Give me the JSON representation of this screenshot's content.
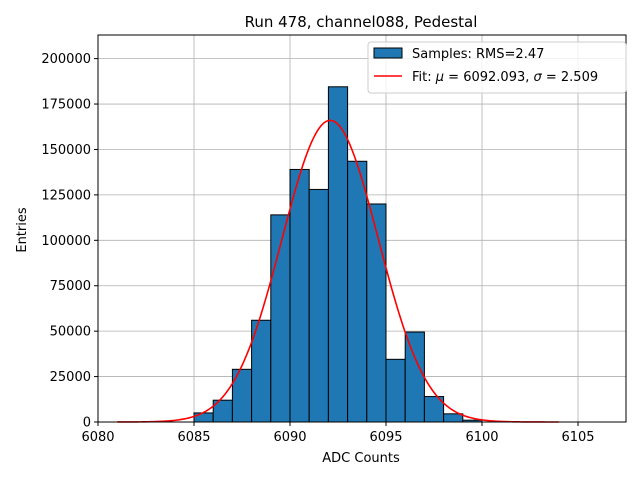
{
  "chart_data": {
    "type": "bar",
    "title": "Run 478, channel088, Pedestal",
    "xlabel": "ADC Counts",
    "ylabel": "Entries",
    "xlim": [
      6080,
      6107.5
    ],
    "ylim": [
      0,
      213000
    ],
    "xticks": [
      6080,
      6085,
      6090,
      6095,
      6100,
      6105
    ],
    "yticks": [
      0,
      25000,
      50000,
      75000,
      100000,
      125000,
      150000,
      175000,
      200000
    ],
    "grid": true,
    "legend_position": "top-right",
    "bin_width": 1,
    "bins": [
      {
        "x0": 6085,
        "value": 5000
      },
      {
        "x0": 6086,
        "value": 12000
      },
      {
        "x0": 6087,
        "value": 29000
      },
      {
        "x0": 6088,
        "value": 56000
      },
      {
        "x0": 6089,
        "value": 114000
      },
      {
        "x0": 6090,
        "value": 139000
      },
      {
        "x0": 6091,
        "value": 128000
      },
      {
        "x0": 6092,
        "value": 184500
      },
      {
        "x0": 6093,
        "value": 143500
      },
      {
        "x0": 6094,
        "value": 120000
      },
      {
        "x0": 6095,
        "value": 34500
      },
      {
        "x0": 6096,
        "value": 49500
      },
      {
        "x0": 6097,
        "value": 14000
      },
      {
        "x0": 6098,
        "value": 4500
      },
      {
        "x0": 6099,
        "value": 1000
      }
    ],
    "fit": {
      "mu": 6092.093,
      "sigma": 2.509,
      "amplitude": 166000,
      "x_range": [
        6081,
        6104
      ]
    },
    "legend": {
      "samples_label": "Samples: RMS=2.47",
      "fit_label_prefix": "Fit: ",
      "fit_mu_symbol": "μ",
      "fit_mu_text": " = 6092.093, ",
      "fit_sigma_symbol": "σ",
      "fit_sigma_text": " = 2.509"
    },
    "colors": {
      "bar_fill": "#1f77b4",
      "bar_edge": "#000000",
      "fit_line": "#ff0000",
      "grid": "#b0b0b0"
    }
  }
}
